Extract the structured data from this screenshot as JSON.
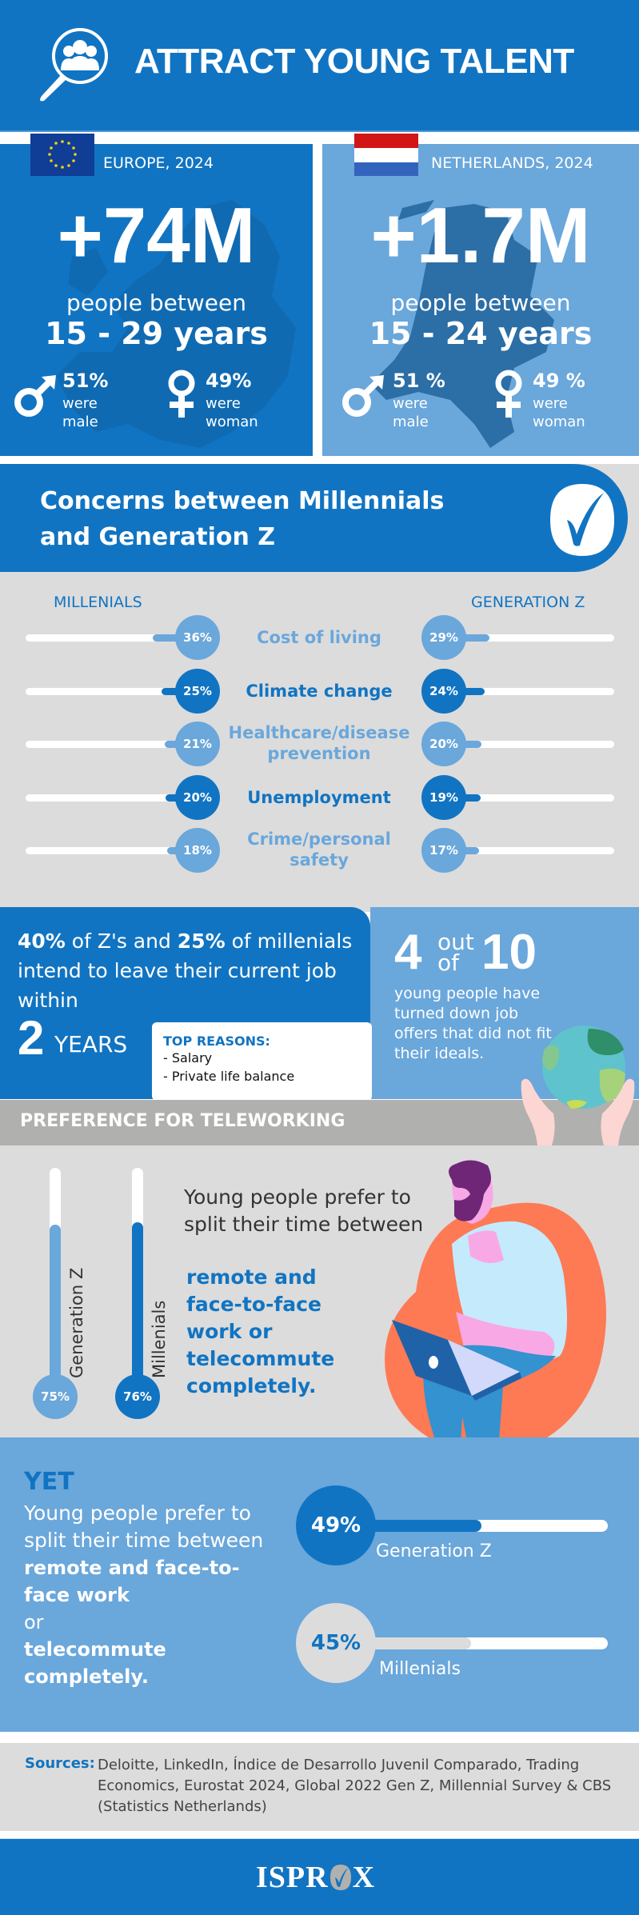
{
  "header": {
    "title": "ATTRACT YOUNG TALENT",
    "icon": "search-people-icon",
    "bg_color": "#1174c2"
  },
  "population": {
    "europe": {
      "label": "EUROPE, 2024",
      "flag": "eu-flag-icon",
      "value": "+74M",
      "people_between": "people between",
      "age_range": "15 - 29 years",
      "male_pct": "51%",
      "male_text_1": "were",
      "male_text_2": "male",
      "female_pct": "49%",
      "female_text_1": "were",
      "female_text_2": "woman",
      "bg_color": "#1174c2"
    },
    "netherlands": {
      "label": "NETHERLANDS, 2024",
      "flag": "nl-flag-icon",
      "value": "+1.7M",
      "people_between": "people between",
      "age_range": "15 - 24 years",
      "male_pct": "51 %",
      "male_text_1": "were",
      "male_text_2": "male",
      "female_pct": "49 %",
      "female_text_1": "were",
      "female_text_2": "woman",
      "bg_color": "#6aa7db"
    }
  },
  "concerns": {
    "title": "Concerns between Millennials and Generation Z",
    "left_heading": "MILLENIALS",
    "right_heading": "GENERATION Z",
    "items": [
      {
        "label": "Cost of living",
        "millennials": "36%",
        "genz": "29%",
        "m_val": 36,
        "z_val": 29,
        "color": "#6aa7db"
      },
      {
        "label": "Climate change",
        "millennials": "25%",
        "genz": "24%",
        "m_val": 25,
        "z_val": 24,
        "color": "#1174c2"
      },
      {
        "label": "Healthcare/disease prevention",
        "millennials": "21%",
        "genz": "20%",
        "m_val": 21,
        "z_val": 20,
        "color": "#6aa7db"
      },
      {
        "label": "Unemployment",
        "millennials": "20%",
        "genz": "19%",
        "m_val": 20,
        "z_val": 19,
        "color": "#1174c2"
      },
      {
        "label": "Crime/personal safety",
        "millennials": "18%",
        "genz": "17%",
        "m_val": 18,
        "z_val": 17,
        "color": "#6aa7db"
      }
    ]
  },
  "job": {
    "z_pct": "40%",
    "text_1": " of Z's and ",
    "m_pct": "25%",
    "text_2": " of millenials intend to leave their current job within",
    "years_num": "2",
    "years_label": "YEARS",
    "reasons_title": "TOP REASONS:",
    "reasons": [
      "- Salary",
      "- Private life balance"
    ],
    "stat_num": "4",
    "stat_out": "out",
    "stat_of": "of",
    "stat_total": "10",
    "stat_text": "young people have turned down job offers that did not fit their ideals."
  },
  "telework": {
    "title": "PREFERENCE FOR TELEWORKING",
    "bars": [
      {
        "label": "Generation Z",
        "value": "75%",
        "num": 75,
        "color": "#6aa7db"
      },
      {
        "label": "Millenials",
        "value": "76%",
        "num": 76,
        "color": "#1174c2"
      }
    ],
    "text": "Young people prefer to split their time between",
    "bold_text": "remote and face-to-face work or telecommute completely."
  },
  "yet": {
    "title": "YET",
    "text": "Young people prefer to split their time between",
    "bold_1": "remote and face-to-face work",
    "or": "or",
    "bold_2": "telecommute completely.",
    "bars": [
      {
        "label": "Generation Z",
        "value": "49%",
        "num": 49,
        "circle_color": "#1174c2",
        "fill_color": "#1174c2",
        "text_color": "#ffffff"
      },
      {
        "label": "Millenials",
        "value": "45%",
        "num": 45,
        "circle_color": "#dcdcdc",
        "fill_color": "#dcdcdc",
        "text_color": "#1174c2"
      }
    ]
  },
  "sources": {
    "label": "Sources:",
    "text": "Deloitte, LinkedIn, Índice de Desarrollo Juvenil Comparado, Trading Economics, Eurostat 2024,  Global 2022 Gen Z, Millennial Survey & CBS (Statistics Netherlands)"
  },
  "footer": {
    "logo_left": "ISPR",
    "logo_right": "X"
  },
  "colors": {
    "primary": "#1174c2",
    "light": "#6aa7db",
    "gray_bg": "#dcdcdc",
    "gray_bar": "#b0b0ae"
  }
}
